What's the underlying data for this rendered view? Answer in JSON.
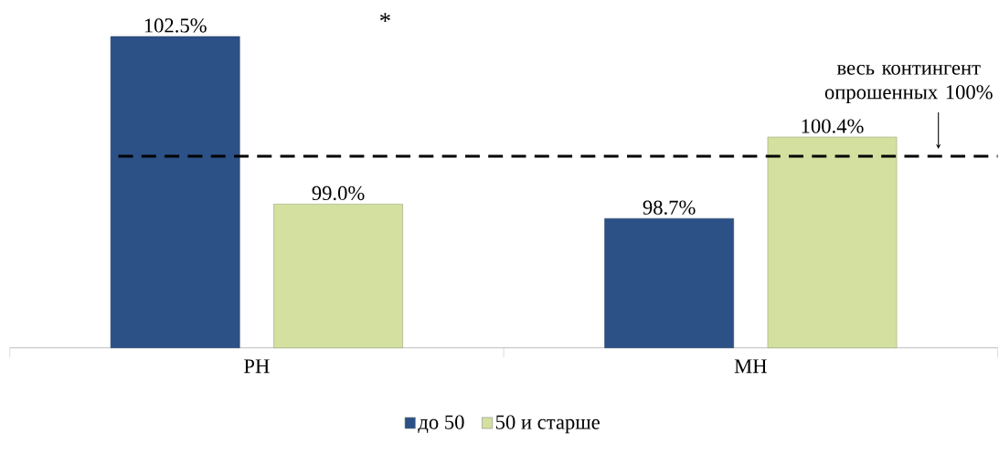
{
  "chart_data": {
    "type": "bar",
    "categories": [
      "РН",
      "МН"
    ],
    "series": [
      {
        "name": "до 50",
        "color": "#2b5186",
        "values": [
          102.5,
          98.7
        ],
        "value_labels": [
          "102.5%",
          "98.7%"
        ]
      },
      {
        "name": "50 и старше",
        "color": "#d3e0a0",
        "values": [
          99.0,
          100.4
        ],
        "value_labels": [
          "99.0%",
          "100.4%"
        ]
      }
    ],
    "legend": "bottom",
    "ylim": [
      96,
      102.5
    ],
    "ref_lines": [
      {
        "axis": "y",
        "value": 100,
        "label": "весь контингент опрошенных 100%",
        "line_style": "dashed",
        "color": "#000000"
      }
    ],
    "annotations": [
      "*"
    ]
  }
}
